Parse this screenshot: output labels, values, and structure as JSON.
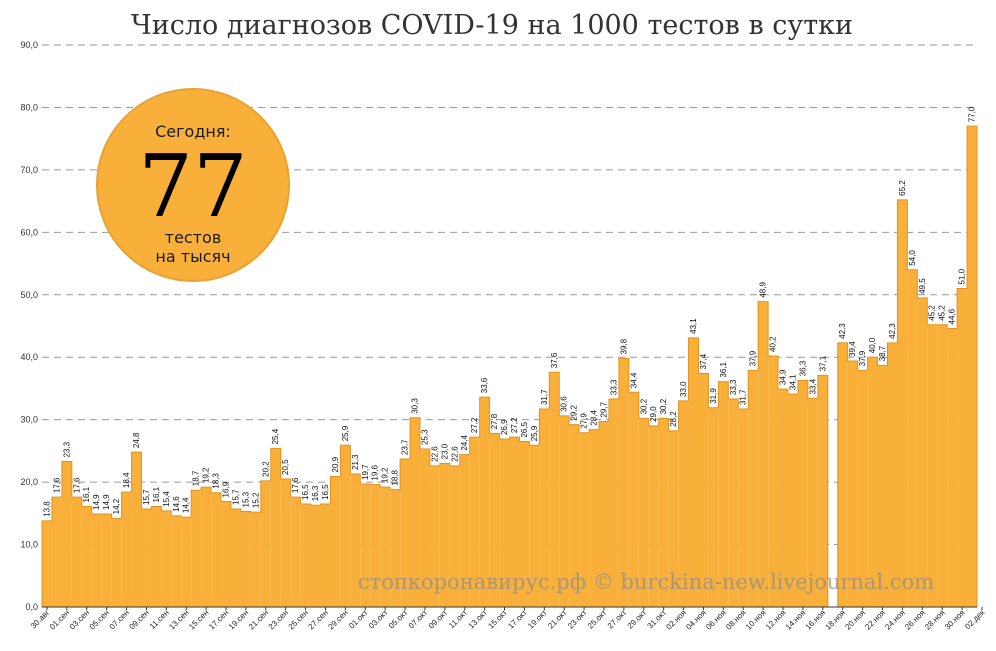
{
  "chart_data": {
    "type": "bar",
    "title": "Число диагнозов COVID-19 на 1000 тестов в сутки",
    "ylim": [
      0,
      90
    ],
    "yticks": [
      "0,0",
      "10,0",
      "20,0",
      "30,0",
      "40,0",
      "50,0",
      "60,0",
      "70,0",
      "80,0",
      "90,0"
    ],
    "grid": true,
    "bar_color": "#f9b03b",
    "values": [
      13.8,
      17.6,
      23.3,
      17.6,
      16.1,
      14.9,
      14.9,
      14.2,
      18.4,
      24.8,
      15.7,
      16.1,
      15.4,
      14.6,
      14.4,
      18.7,
      19.2,
      18.3,
      16.9,
      15.7,
      15.3,
      15.2,
      20.2,
      25.4,
      20.5,
      17.6,
      16.5,
      16.3,
      16.5,
      20.9,
      25.9,
      21.3,
      19.7,
      19.6,
      19.2,
      18.8,
      23.7,
      30.3,
      25.3,
      22.6,
      23.0,
      22.6,
      24.4,
      27.2,
      33.6,
      27.8,
      26.9,
      27.2,
      26.5,
      25.9,
      31.7,
      37.6,
      30.6,
      29.2,
      27.9,
      28.4,
      29.7,
      33.3,
      39.8,
      34.4,
      30.2,
      29.0,
      30.2,
      28.2,
      33.0,
      43.1,
      37.4,
      31.9,
      36.1,
      33.3,
      31.7,
      37.9,
      48.9,
      40.2,
      34.9,
      34.1,
      36.3,
      33.4,
      37.1,
      null,
      42.3,
      39.4,
      37.9,
      40.0,
      38.7,
      42.3,
      65.2,
      54.0,
      49.5,
      45.2,
      45.2,
      44.6,
      51.0,
      77.0
    ],
    "labels": [
      "13,8",
      "17,6",
      "23,3",
      "17,6",
      "16,1",
      "14,9",
      "14,9",
      "14,2",
      "18,4",
      "24,8",
      "15,7",
      "16,1",
      "15,4",
      "14,6",
      "14,4",
      "18,7",
      "19,2",
      "18,3",
      "16,9",
      "15,7",
      "15,3",
      "15,2",
      "20,2",
      "25,4",
      "20,5",
      "17,6",
      "16,5",
      "16,3",
      "16,5",
      "20,9",
      "25,9",
      "21,3",
      "19,7",
      "19,6",
      "19,2",
      "18,8",
      "23,7",
      "30,3",
      "25,3",
      "22,6",
      "23,0",
      "22,6",
      "24,4",
      "27,2",
      "33,6",
      "27,8",
      "26,9",
      "27,2",
      "26,5",
      "25,9",
      "31,7",
      "37,6",
      "30,6",
      "29,2",
      "27,9",
      "28,4",
      "29,7",
      "33,3",
      "39,8",
      "34,4",
      "30,2",
      "29,0",
      "30,2",
      "28,2",
      "33,0",
      "43,1",
      "37,4",
      "31,9",
      "36,1",
      "33,3",
      "31,7",
      "37,9",
      "48,9",
      "40,2",
      "34,9",
      "34,1",
      "36,3",
      "33,4",
      "37,1",
      "",
      "42,3",
      "39,4",
      "37,9",
      "40,0",
      "38,7",
      "42,3",
      "65,2",
      "54,0",
      "49,5",
      "45,2",
      "45,2",
      "44,6",
      "51,0",
      "77,0"
    ],
    "x_tick_labels": [
      "30.авг",
      "01.сен",
      "03.сен",
      "05.сен",
      "07.сен",
      "09.сен",
      "11.сен",
      "13.сен",
      "15.сен",
      "17.сен",
      "19.сен",
      "21.сен",
      "23.сен",
      "25.сен",
      "27.сен",
      "29.сен",
      "01.окт",
      "03.окт",
      "05.окт",
      "07.окт",
      "09.окт",
      "11.окт",
      "13.окт",
      "15.окт",
      "17.окт",
      "19.окт",
      "21.окт",
      "23.окт",
      "25.окт",
      "27.окт",
      "29.окт",
      "31.окт",
      "02.ноя",
      "04.ноя",
      "06.ноя",
      "08.ноя",
      "10.ноя",
      "12.ноя",
      "14.ноя",
      "16.ноя",
      "18.ноя",
      "20.ноя",
      "22.ноя",
      "24.ноя",
      "26.ноя",
      "28.ноя",
      "30.ноя",
      "02.дек"
    ]
  },
  "badge": {
    "heading": "Сегодня:",
    "value": "77",
    "line1": "тестов",
    "line2": "на тысяч",
    "color": "#f9b03b"
  },
  "watermark": "стопкоронавирус.рф © burckina-new.livejournal.com"
}
